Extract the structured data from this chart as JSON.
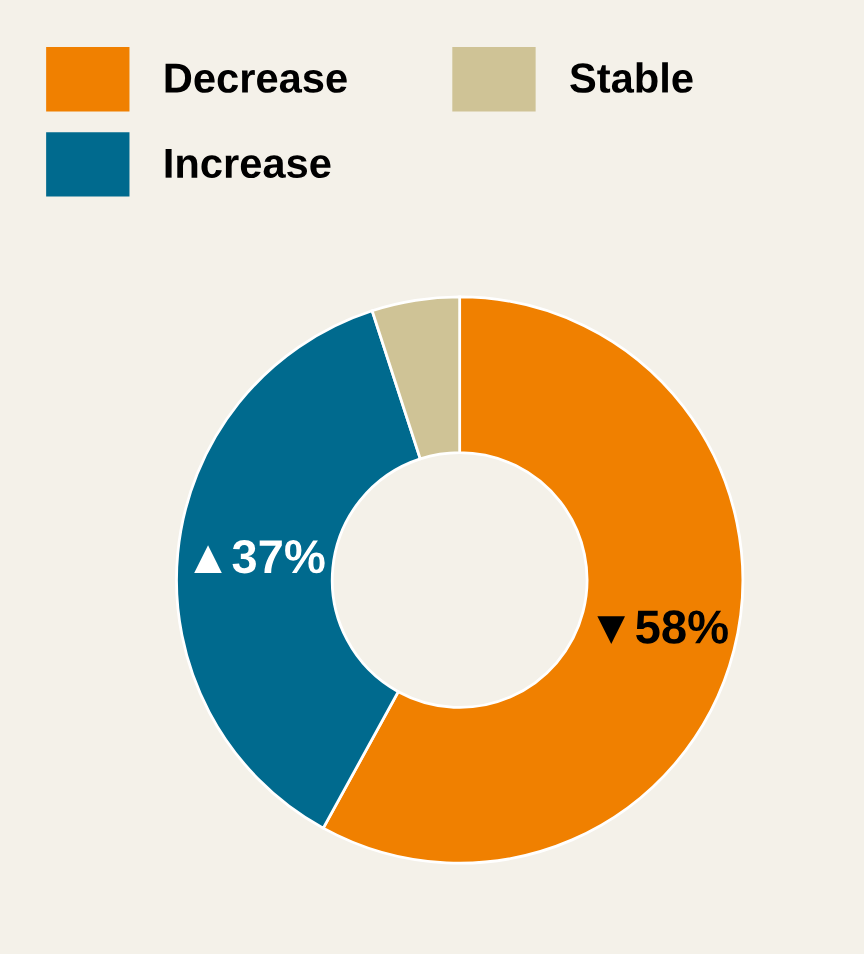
{
  "chart_data": {
    "type": "donut",
    "categories": [
      "Decrease",
      "Increase",
      "Stable"
    ],
    "values": [
      58,
      37,
      5
    ],
    "colors": [
      "#f08000",
      "#006a8e",
      "#cfc396"
    ],
    "value_labels": [
      "▼58%",
      "▲37%",
      null
    ],
    "legend": "top left"
  }
}
